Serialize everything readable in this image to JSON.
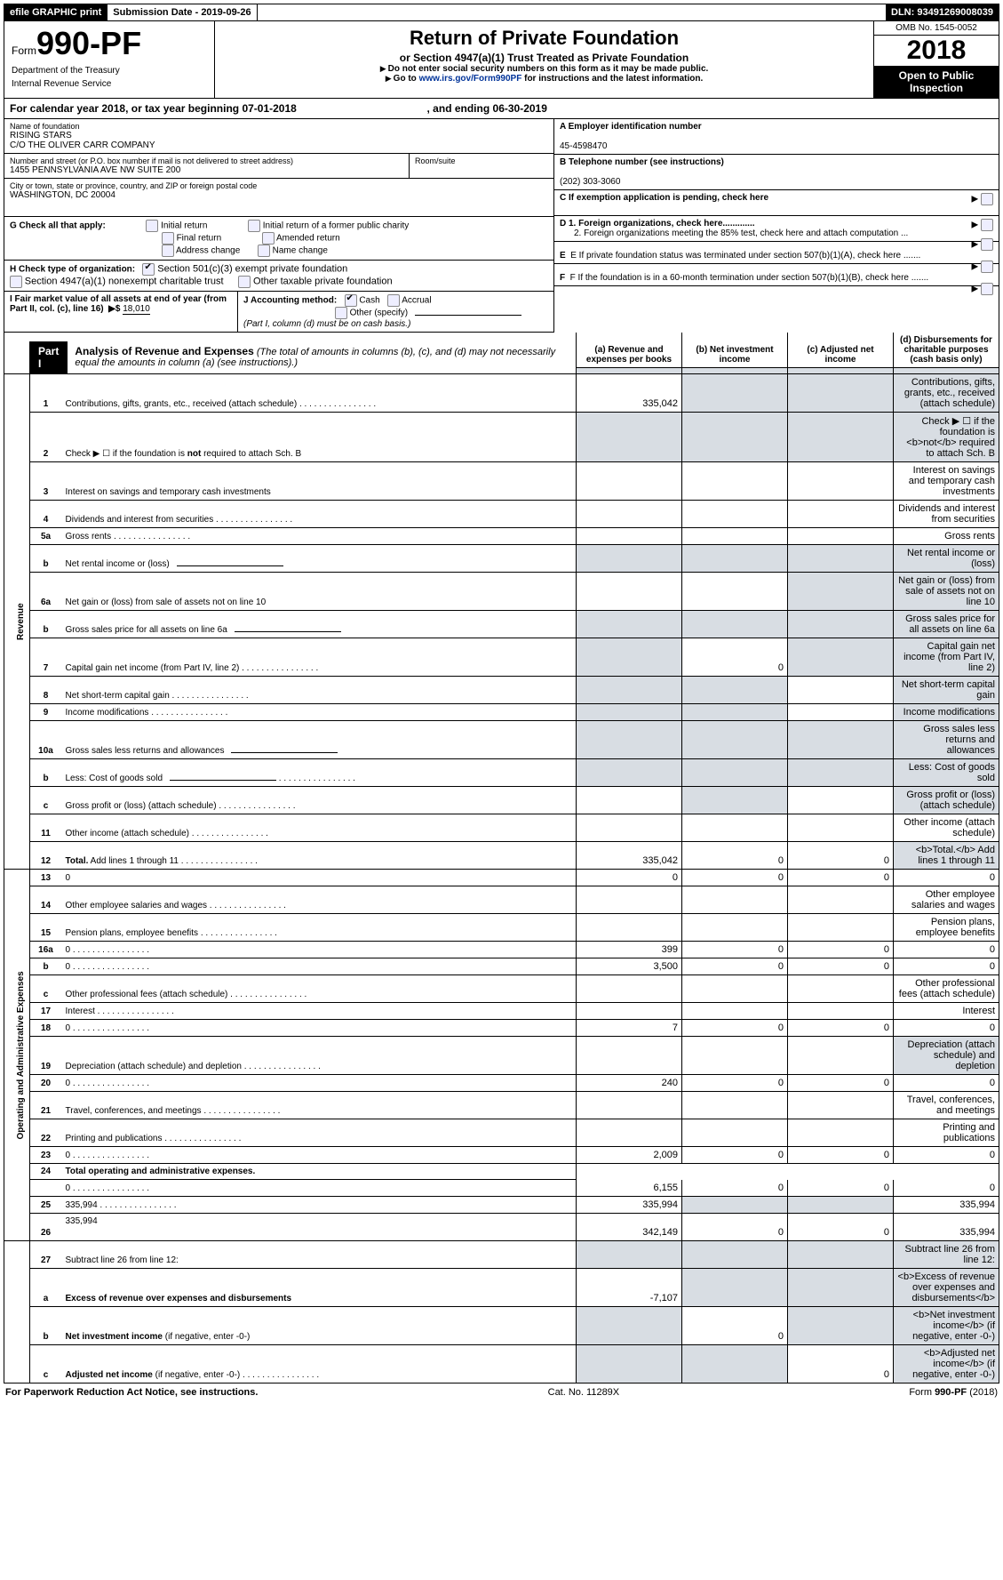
{
  "top": {
    "efile": "efile GRAPHIC print",
    "submission": "Submission Date - 2019-09-26",
    "dln": "DLN: 93491269008039"
  },
  "header": {
    "form_prefix": "Form",
    "form_number": "990-PF",
    "dept1": "Department of the Treasury",
    "dept2": "Internal Revenue Service",
    "title": "Return of Private Foundation",
    "subtitle": "or Section 4947(a)(1) Trust Treated as Private Foundation",
    "instr1": "Do not enter social security numbers on this form as it may be made public.",
    "instr2_pre": "Go to ",
    "instr2_link": "www.irs.gov/Form990PF",
    "instr2_post": " for instructions and the latest information.",
    "omb": "OMB No. 1545-0052",
    "year": "2018",
    "open": "Open to Public Inspection"
  },
  "cal": {
    "text1": "For calendar year 2018, or tax year beginning 07-01-2018",
    "text2": ", and ending 06-30-2019"
  },
  "entity": {
    "name_lbl": "Name of foundation",
    "name1": "RISING STARS",
    "name2": "C/O THE OLIVER CARR COMPANY",
    "addr_lbl": "Number and street (or P.O. box number if mail is not delivered to street address)",
    "addr": "1455 PENNSYLVANIA AVE NW SUITE 200",
    "room_lbl": "Room/suite",
    "city_lbl": "City or town, state or province, country, and ZIP or foreign postal code",
    "city": "WASHINGTON, DC  20004"
  },
  "right": {
    "a_lbl": "A Employer identification number",
    "a_val": "45-4598470",
    "b_lbl": "B Telephone number (see instructions)",
    "b_val": "(202) 303-3060",
    "c_lbl": "C  If exemption application is pending, check here",
    "d1": "D 1. Foreign organizations, check here.............",
    "d2": "2. Foreign organizations meeting the 85% test, check here and attach computation ...",
    "e": "E  If private foundation status was terminated under section 507(b)(1)(A), check here .......",
    "f": "F  If the foundation is in a 60-month termination under section 507(b)(1)(B), check here ......."
  },
  "g": {
    "label": "G Check all that apply:",
    "opts": [
      "Initial return",
      "Initial return of a former public charity",
      "Final return",
      "Amended return",
      "Address change",
      "Name change"
    ]
  },
  "h": {
    "label": "H Check type of organization:",
    "opt1": "Section 501(c)(3) exempt private foundation",
    "opt2": "Section 4947(a)(1) nonexempt charitable trust",
    "opt3": "Other taxable private foundation"
  },
  "i": {
    "label": "I Fair market value of all assets at end of year (from Part II, col. (c), line 16)",
    "arrow": "▶$",
    "value": "18,010"
  },
  "j": {
    "label": "J Accounting method:",
    "cash": "Cash",
    "accrual": "Accrual",
    "other": "Other (specify)",
    "note": "(Part I, column (d) must be on cash basis.)"
  },
  "part1": {
    "num": "Part I",
    "title": "Analysis of Revenue and Expenses",
    "note": "(The total of amounts in columns (b), (c), and (d) may not necessarily equal the amounts in column (a) (see instructions).)",
    "col_a": "(a)    Revenue and expenses per books",
    "col_b": "(b)    Net investment income",
    "col_c": "(c)    Adjusted net income",
    "col_d": "(d)    Disbursements for charitable purposes (cash basis only)"
  },
  "sections": {
    "rev": "Revenue",
    "exp": "Operating and Administrative Expenses"
  },
  "rows": [
    {
      "n": "1",
      "d": "Contributions, gifts, grants, etc., received (attach schedule)",
      "a": "335,042",
      "b_sh": true,
      "c_sh": true,
      "d_sh": true,
      "sec": "rev"
    },
    {
      "n": "2",
      "d": "Check ▶ ☐ if the foundation is <b>not</b> required to attach Sch. B",
      "a_sh": true,
      "b_sh": true,
      "c_sh": true,
      "d_sh": true,
      "sec": "rev",
      "nodots": true
    },
    {
      "n": "3",
      "d": "Interest on savings and temporary cash investments",
      "sec": "rev",
      "nodots": true
    },
    {
      "n": "4",
      "d": "Dividends and interest from securities",
      "sec": "rev"
    },
    {
      "n": "5a",
      "d": "Gross rents",
      "sec": "rev"
    },
    {
      "n": "b",
      "d": "Net rental income or (loss)",
      "a_sh": true,
      "b_sh": true,
      "c_sh": true,
      "d_sh": true,
      "sec": "rev",
      "ul": true,
      "nodots": true
    },
    {
      "n": "6a",
      "d": "Net gain or (loss) from sale of assets not on line 10",
      "c_sh": true,
      "d_sh": true,
      "sec": "rev",
      "nodots": true
    },
    {
      "n": "b",
      "d": "Gross sales price for all assets on line 6a",
      "a_sh": true,
      "b_sh": true,
      "c_sh": true,
      "d_sh": true,
      "sec": "rev",
      "ul": true,
      "nodots": true
    },
    {
      "n": "7",
      "d": "Capital gain net income (from Part IV, line 2)",
      "a_sh": true,
      "b": "0",
      "c_sh": true,
      "d_sh": true,
      "sec": "rev"
    },
    {
      "n": "8",
      "d": "Net short-term capital gain",
      "a_sh": true,
      "b_sh": true,
      "d_sh": true,
      "sec": "rev"
    },
    {
      "n": "9",
      "d": "Income modifications",
      "a_sh": true,
      "b_sh": true,
      "d_sh": true,
      "sec": "rev"
    },
    {
      "n": "10a",
      "d": "Gross sales less returns and allowances",
      "a_sh": true,
      "b_sh": true,
      "c_sh": true,
      "d_sh": true,
      "sec": "rev",
      "ul": true,
      "nodots": true
    },
    {
      "n": "b",
      "d": "Less: Cost of goods sold",
      "a_sh": true,
      "b_sh": true,
      "c_sh": true,
      "d_sh": true,
      "sec": "rev",
      "ul": true
    },
    {
      "n": "c",
      "d": "Gross profit or (loss) (attach schedule)",
      "b_sh": true,
      "d_sh": true,
      "sec": "rev"
    },
    {
      "n": "11",
      "d": "Other income (attach schedule)",
      "sec": "rev"
    },
    {
      "n": "12",
      "d": "<b>Total.</b> Add lines 1 through 11",
      "a": "335,042",
      "b": "0",
      "c": "0",
      "d_sh": true,
      "sec": "rev"
    },
    {
      "n": "13",
      "d": "0",
      "a": "0",
      "b": "0",
      "c": "0",
      "sec": "exp",
      "nodots": true
    },
    {
      "n": "14",
      "d": "Other employee salaries and wages",
      "sec": "exp"
    },
    {
      "n": "15",
      "d": "Pension plans, employee benefits",
      "sec": "exp"
    },
    {
      "n": "16a",
      "d": "0",
      "a": "399",
      "b": "0",
      "c": "0",
      "sec": "exp"
    },
    {
      "n": "b",
      "d": "0",
      "a": "3,500",
      "b": "0",
      "c": "0",
      "sec": "exp"
    },
    {
      "n": "c",
      "d": "Other professional fees (attach schedule)",
      "sec": "exp"
    },
    {
      "n": "17",
      "d": "Interest",
      "sec": "exp"
    },
    {
      "n": "18",
      "d": "0",
      "a": "7",
      "b": "0",
      "c": "0",
      "sec": "exp"
    },
    {
      "n": "19",
      "d": "Depreciation (attach schedule) and depletion",
      "d_sh": true,
      "sec": "exp"
    },
    {
      "n": "20",
      "d": "0",
      "a": "240",
      "b": "0",
      "c": "0",
      "sec": "exp"
    },
    {
      "n": "21",
      "d": "Travel, conferences, and meetings",
      "sec": "exp"
    },
    {
      "n": "22",
      "d": "Printing and publications",
      "sec": "exp"
    },
    {
      "n": "23",
      "d": "0",
      "a": "2,009",
      "b": "0",
      "c": "0",
      "sec": "exp"
    },
    {
      "n": "24",
      "d": "<b>Total operating and administrative expenses.</b>",
      "noabcd": true,
      "sec": "exp",
      "nodots": true
    },
    {
      "n": "",
      "d": "0",
      "a": "6,155",
      "b": "0",
      "c": "0",
      "sec": "exp"
    },
    {
      "n": "25",
      "d": "335,994",
      "a": "335,994",
      "b_sh": true,
      "c_sh": true,
      "sec": "exp"
    },
    {
      "n": "26",
      "d": "335,994",
      "a": "342,149",
      "b": "0",
      "c": "0",
      "sec": "exp",
      "tall": true,
      "nodots": true
    },
    {
      "n": "27",
      "d": "Subtract line 26 from line 12:",
      "a_sh": true,
      "b_sh": true,
      "c_sh": true,
      "d_sh": true,
      "sec": "none",
      "nodots": true
    },
    {
      "n": "a",
      "d": "<b>Excess of revenue over expenses and disbursements</b>",
      "a": "-7,107",
      "b_sh": true,
      "c_sh": true,
      "d_sh": true,
      "sec": "none",
      "nodots": true
    },
    {
      "n": "b",
      "d": "<b>Net investment income</b> (if negative, enter -0-)",
      "a_sh": true,
      "b": "0",
      "c_sh": true,
      "d_sh": true,
      "sec": "none",
      "nodots": true
    },
    {
      "n": "c",
      "d": "<b>Adjusted net income</b> (if negative, enter -0-)",
      "a_sh": true,
      "b_sh": true,
      "c": "0",
      "d_sh": true,
      "sec": "none"
    }
  ],
  "footer": {
    "left": "For Paperwork Reduction Act Notice, see instructions.",
    "mid": "Cat. No. 11289X",
    "right": "Form 990-PF (2018)"
  }
}
